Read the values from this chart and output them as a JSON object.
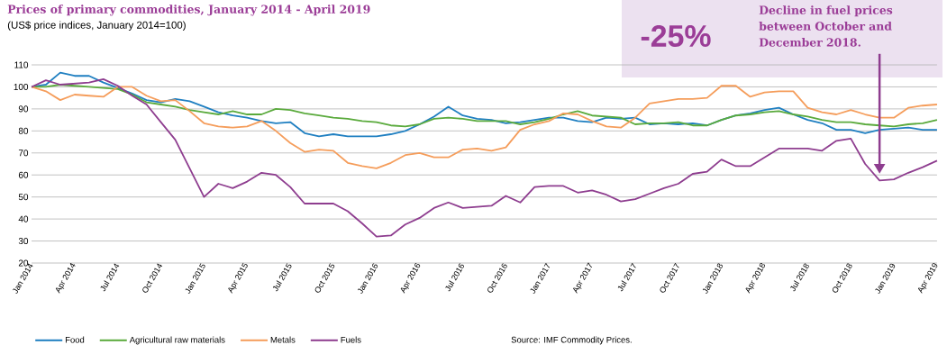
{
  "chart_data": {
    "type": "line",
    "title": "Prices of primary commodities, January 2014 - April 2019",
    "subtitle": "(US$ price indices, January 2014=100)",
    "categories": [
      "Jan 2014",
      null,
      null,
      "Apr 2014",
      null,
      null,
      "Jul 2014",
      null,
      null,
      "Oct 2014",
      null,
      null,
      "Jan 2015",
      null,
      null,
      "Apr 2015",
      null,
      null,
      "Jul 2015",
      null,
      null,
      "Oct 2015",
      null,
      null,
      "Jan 2016",
      null,
      null,
      "Apr 2016",
      null,
      null,
      "Jul 2016",
      null,
      null,
      "Oct 2016",
      null,
      null,
      "Jan 2017",
      null,
      null,
      "Apr 2017",
      null,
      null,
      "Jul 2017",
      null,
      null,
      "Oct 2017",
      null,
      null,
      "Jan 2018",
      null,
      null,
      "Apr 2018",
      null,
      null,
      "Jul 2018",
      null,
      null,
      "Oct 2018",
      null,
      null,
      "Jan 2019",
      null,
      null,
      "Apr 2019"
    ],
    "series": [
      {
        "name": "Food",
        "color": "#1f7fc1",
        "values": [
          100,
          101,
          106.5,
          105,
          105,
          102,
          99.5,
          97,
          94,
          93,
          94.5,
          93.5,
          91,
          88.5,
          87,
          86,
          84.5,
          83.5,
          84,
          79,
          77.5,
          78.5,
          77.5,
          77.5,
          77.5,
          78.5,
          80,
          83,
          86.5,
          91,
          87,
          85.5,
          85,
          83.5,
          84,
          85,
          86,
          86,
          84.5,
          84,
          86,
          85.5,
          86,
          83,
          83.5,
          83,
          83.5,
          82.5,
          85,
          87,
          88,
          89.5,
          90.5,
          87.5,
          85,
          83.5,
          80.5,
          80.5,
          79,
          80.5,
          81,
          81.5,
          80.5,
          80.5
        ]
      },
      {
        "name": "Agricultural raw materials",
        "color": "#5aaa3c",
        "values": [
          100,
          100,
          101,
          100.5,
          100,
          99.5,
          99,
          96.5,
          93,
          92,
          91,
          89.5,
          88.5,
          87.5,
          89,
          87.5,
          87.5,
          90,
          89.5,
          88,
          87,
          86,
          85.5,
          84.5,
          84,
          82.5,
          82,
          83,
          85.5,
          86,
          85.5,
          84.5,
          84.5,
          84.5,
          83,
          84,
          85.5,
          87.5,
          89,
          87,
          86.5,
          86,
          83,
          83.5,
          83.5,
          84,
          82.5,
          82.5,
          85,
          87,
          87.5,
          88.5,
          89,
          87.5,
          86.5,
          85,
          84,
          84,
          83,
          82.5,
          82,
          83,
          83.5,
          85
        ]
      },
      {
        "name": "Metals",
        "color": "#f59d5b",
        "values": [
          100,
          98,
          94,
          96.5,
          96,
          95.5,
          100,
          100,
          96,
          93.5,
          94,
          89,
          83.5,
          82,
          81.5,
          82,
          84.5,
          80,
          74.5,
          70.5,
          71.5,
          71,
          65.5,
          64,
          63,
          65.5,
          69,
          70,
          68,
          68,
          71.5,
          72,
          71,
          72.5,
          80.5,
          83,
          84.5,
          88,
          87.5,
          84.5,
          82,
          81.5,
          86,
          92.5,
          93.5,
          94.5,
          94.5,
          95,
          100.5,
          100.5,
          95.5,
          97.5,
          98,
          98,
          90.5,
          88.5,
          87.5,
          89.5,
          87.5,
          86,
          86,
          90.5,
          91.5,
          92
        ]
      },
      {
        "name": "Fuels",
        "color": "#8e3d8f",
        "values": [
          100,
          103,
          101,
          101.5,
          102,
          103.5,
          100.5,
          96,
          92,
          84,
          76,
          63,
          50,
          56,
          54,
          57,
          61,
          60,
          54.5,
          47,
          47,
          47,
          43.5,
          38,
          32,
          32.5,
          37.5,
          40.5,
          45,
          47.5,
          45,
          45.5,
          46,
          50.5,
          47.5,
          54.5,
          55,
          55,
          52,
          53,
          51,
          48,
          49,
          51.5,
          54,
          56,
          60.5,
          61.5,
          67,
          64,
          64,
          68,
          72,
          72,
          72,
          71,
          75.5,
          76.5,
          65,
          57.5,
          58,
          61,
          63.5,
          66.5
        ]
      }
    ],
    "ylim": [
      20,
      110
    ],
    "yticks": [
      20,
      30,
      40,
      50,
      60,
      70,
      80,
      90,
      100,
      110
    ],
    "grid": "y",
    "legend": "bottom",
    "annotations": [
      "-25%",
      "Decline in fuel prices between October and December 2018.",
      "Source: IMF Commodity Prices."
    ]
  }
}
